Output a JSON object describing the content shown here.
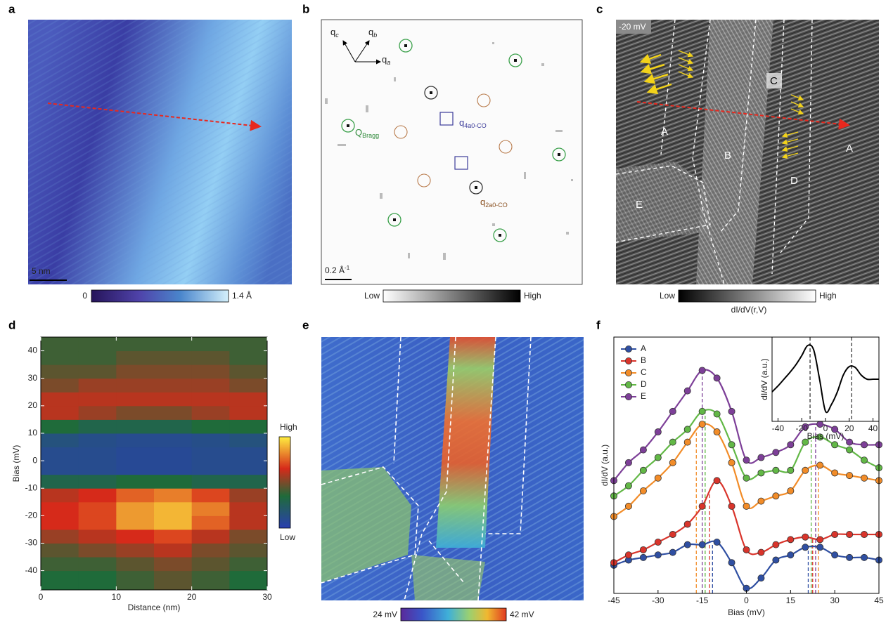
{
  "panel_labels": [
    "a",
    "b",
    "c",
    "d",
    "e",
    "f"
  ],
  "panel_a": {
    "scale_bar": "5 nm",
    "colorbar_min": "0",
    "colorbar_max": "1.4 Å"
  },
  "panel_b": {
    "axes": [
      {
        "base": "q",
        "sub": "c"
      },
      {
        "base": "q",
        "sub": "b"
      },
      {
        "base": "q",
        "sub": "a"
      }
    ],
    "bragg": {
      "base": "Q",
      "sub": "Bragg"
    },
    "q4": {
      "base": "q",
      "sub": "4a0-CO"
    },
    "q2": {
      "base": "q",
      "sub": "2a0-CO"
    },
    "scale_bar": {
      "base": "0.2 Å",
      "sup": "-1"
    },
    "colorbar_low": "Low",
    "colorbar_high": "High"
  },
  "panel_c": {
    "bias": "-20 mV",
    "domains": [
      "A",
      "B",
      "C",
      "D",
      "A",
      "E"
    ],
    "colorbar_low": "Low",
    "colorbar_high": "High",
    "colorbar_label": "dI/dV(r,V)"
  },
  "panel_e": {
    "colorbar_min": "24 mV",
    "colorbar_max": "42 mV"
  },
  "chart_data": [
    {
      "type": "heatmap",
      "x_label": "Distance (nm)",
      "y_label": "Bias (mV)",
      "xlim": [
        0,
        30
      ],
      "xticks": [
        0,
        10,
        20,
        30
      ],
      "ylim": [
        -47,
        45
      ],
      "yticks": [
        -40,
        -30,
        -20,
        -10,
        0,
        10,
        20,
        30,
        40
      ],
      "x_bins": [
        0,
        5,
        10,
        15,
        20,
        25,
        30
      ],
      "y_bins": [
        -47,
        -40,
        -35,
        -30,
        -25,
        -20,
        -15,
        -10,
        -5,
        0,
        5,
        10,
        15,
        20,
        25,
        30,
        35,
        40,
        45
      ],
      "zlim": [
        0,
        1
      ],
      "values": [
        [
          0.35,
          0.35,
          0.4,
          0.45,
          0.4,
          0.35
        ],
        [
          0.4,
          0.4,
          0.45,
          0.5,
          0.45,
          0.4
        ],
        [
          0.45,
          0.5,
          0.55,
          0.6,
          0.5,
          0.45
        ],
        [
          0.55,
          0.6,
          0.65,
          0.7,
          0.6,
          0.5
        ],
        [
          0.65,
          0.7,
          0.85,
          0.9,
          0.75,
          0.6
        ],
        [
          0.65,
          0.7,
          0.85,
          0.9,
          0.8,
          0.6
        ],
        [
          0.6,
          0.65,
          0.75,
          0.8,
          0.7,
          0.55
        ],
        [
          0.3,
          0.3,
          0.35,
          0.35,
          0.3,
          0.3
        ],
        [
          0.1,
          0.1,
          0.08,
          0.08,
          0.1,
          0.1
        ],
        [
          0.1,
          0.1,
          0.08,
          0.08,
          0.1,
          0.1
        ],
        [
          0.15,
          0.12,
          0.1,
          0.1,
          0.12,
          0.15
        ],
        [
          0.35,
          0.3,
          0.3,
          0.3,
          0.35,
          0.35
        ],
        [
          0.6,
          0.55,
          0.5,
          0.5,
          0.55,
          0.6
        ],
        [
          0.6,
          0.6,
          0.6,
          0.6,
          0.6,
          0.6
        ],
        [
          0.5,
          0.55,
          0.55,
          0.55,
          0.55,
          0.5
        ],
        [
          0.45,
          0.45,
          0.5,
          0.5,
          0.5,
          0.45
        ],
        [
          0.4,
          0.4,
          0.45,
          0.45,
          0.45,
          0.4
        ],
        [
          0.4,
          0.4,
          0.4,
          0.4,
          0.4,
          0.4
        ]
      ],
      "colorbar_high": "High",
      "colorbar_low": "Low"
    },
    {
      "type": "line",
      "x_label": "Bias (mV)",
      "y_label": "dI/dV (a.u.)",
      "x": [
        -45,
        -40,
        -35,
        -30,
        -25,
        -20,
        -15,
        -10,
        -5,
        0,
        5,
        10,
        15,
        20,
        25,
        30,
        35,
        40,
        45
      ],
      "xlim": [
        -45,
        45
      ],
      "xticks": [
        -45,
        -30,
        -15,
        0,
        15,
        30,
        45
      ],
      "ylim": [
        0,
        100
      ],
      "legend": "upper left",
      "series": [
        {
          "name": "A",
          "color": "#2f4fa2",
          "peaks": [
            -11.5,
            21
          ],
          "values": [
            11,
            13,
            14,
            15,
            16,
            19,
            19,
            20,
            12,
            2,
            6,
            13,
            15,
            18,
            18,
            15,
            14,
            14,
            13
          ]
        },
        {
          "name": "B",
          "color": "#d9342b",
          "peaks": [
            -12.5,
            22.5
          ],
          "values": [
            12,
            15,
            17,
            20,
            23,
            27,
            34,
            44,
            34,
            17,
            16,
            19,
            21,
            22,
            21,
            23,
            23,
            23,
            23
          ]
        },
        {
          "name": "C",
          "color": "#f28c28",
          "peaks": [
            -17,
            24.5
          ],
          "values": [
            30,
            34,
            40,
            45,
            51,
            59,
            66,
            63,
            51,
            34,
            36,
            38,
            40,
            48,
            50,
            47,
            46,
            45,
            44
          ]
        },
        {
          "name": "D",
          "color": "#62b846",
          "peaks": [
            -14,
            22
          ],
          "values": [
            38,
            42,
            48,
            53,
            59,
            64,
            71,
            70,
            58,
            45,
            47,
            48,
            48,
            59,
            61,
            58,
            56,
            52,
            49
          ]
        },
        {
          "name": "E",
          "color": "#7d3f98",
          "peaks": [
            -15,
            23.5
          ],
          "values": [
            44,
            51,
            56,
            63,
            71,
            79,
            87,
            84,
            71,
            52,
            53,
            55,
            58,
            65,
            66,
            64,
            59,
            58,
            58
          ]
        }
      ]
    },
    {
      "type": "line",
      "x_label": "Bias (mV)",
      "y_label": "dI/dV (a.u.)",
      "x": [
        -45,
        -40,
        -35,
        -30,
        -25,
        -20,
        -15,
        -10,
        -5,
        0,
        5,
        10,
        15,
        20,
        25,
        30,
        35,
        40,
        45
      ],
      "xlim": [
        -45,
        45
      ],
      "xticks": [
        -40,
        -20,
        0,
        20,
        40
      ],
      "ylim": [
        0,
        1
      ],
      "peaks": [
        -13,
        22
      ],
      "series": [
        {
          "color": "#000000",
          "values": [
            0.35,
            0.42,
            0.5,
            0.58,
            0.67,
            0.78,
            0.9,
            0.85,
            0.5,
            0.12,
            0.2,
            0.35,
            0.55,
            0.65,
            0.64,
            0.55,
            0.5,
            0.5,
            0.5
          ]
        }
      ]
    }
  ]
}
